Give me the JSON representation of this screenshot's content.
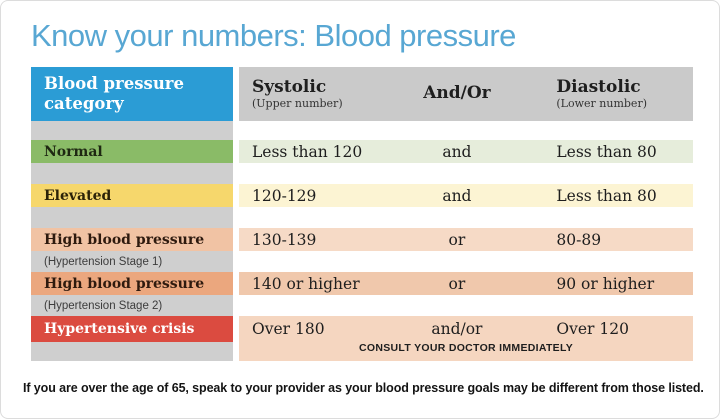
{
  "page": {
    "title": "Know your numbers: Blood pressure",
    "footer_note": "If you are over the age of 65, speak to your provider as your blood pressure goals may be different from those listed."
  },
  "colors": {
    "title_text": "#58A7D3",
    "category_header_bg": "#2B9CD5",
    "category_header_text": "#FFFFFF",
    "header_bg": "#CACACA",
    "header_text": "#1E1E1E",
    "header_sub_text": "#333333",
    "spacer_bg": "#CFCFCF",
    "subtitle_text": "#3C3C3C",
    "value_text": "#1E1E1E",
    "consult_text": "#1E1E1E",
    "footer_text": "#141414",
    "card_bg": "#FFFFFF",
    "card_border": "#DCDCDC"
  },
  "table": {
    "header": {
      "category": "Blood pressure category",
      "columns": [
        {
          "label": "Systolic",
          "sub": "(Upper number)"
        },
        {
          "label": "And/Or",
          "sub": ""
        },
        {
          "label": "Diastolic",
          "sub": "(Lower number)"
        }
      ]
    },
    "rows": [
      {
        "category": "Normal",
        "subtitle": "",
        "systolic": "Less than 120",
        "connector": "and",
        "diastolic": "Less than 80",
        "label_bg": "#8ABB67",
        "label_fg": "#1E2812",
        "row_bg": "#E6EDDB"
      },
      {
        "category": "Elevated",
        "subtitle": "",
        "systolic": "120-129",
        "connector": "and",
        "diastolic": "Less than 80",
        "label_bg": "#F6D76C",
        "label_fg": "#2B2208",
        "row_bg": "#FCF4D3"
      },
      {
        "category": "High blood pressure",
        "subtitle": "(Hypertension Stage 1)",
        "systolic": "130-139",
        "connector": "or",
        "diastolic": "80-89",
        "label_bg": "#F1C3A4",
        "label_fg": "#2E1A0E",
        "row_bg": "#F6DAC6"
      },
      {
        "category": "High blood pressure",
        "subtitle": "(Hypertension Stage 2)",
        "systolic": "140 or higher",
        "connector": "or",
        "diastolic": "90 or higher",
        "label_bg": "#EBA77E",
        "label_fg": "#2E1A0E",
        "row_bg": "#F0C8AC"
      },
      {
        "category": "Hypertensive crisis",
        "subtitle": "",
        "systolic": "Over 180",
        "connector": "and/or",
        "diastolic": "Over 120",
        "label_bg": "#DB4B40",
        "label_fg": "#FFFFFF",
        "row_bg": "#F5D6C0",
        "note": "CONSULT YOUR DOCTOR IMMEDIATELY"
      }
    ]
  }
}
